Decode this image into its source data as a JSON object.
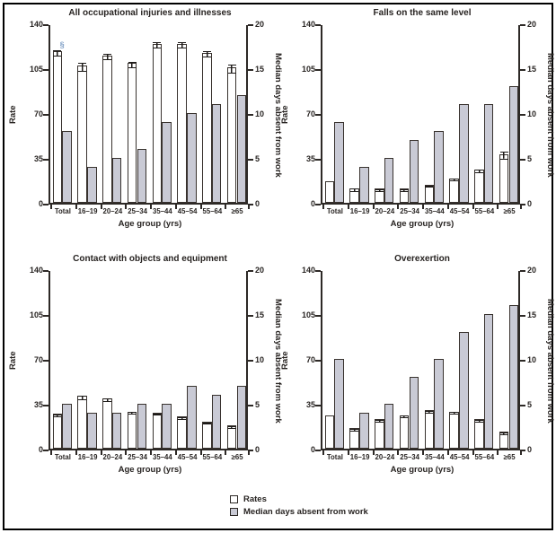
{
  "figure": {
    "legend": [
      {
        "label": "Rates",
        "fill": "#ffffff"
      },
      {
        "label": "Median days absent from work",
        "fill": "#c9cad5"
      }
    ],
    "colors": {
      "frame_border": "#000000",
      "axis": "#2d2926",
      "bar_outline": "#38322e",
      "rates_fill": "#ffffff",
      "days_fill": "#c9cad5",
      "text": "#272321",
      "footnote_marker": "#7f9fc6"
    },
    "footnote_marker": "§"
  },
  "chart_data": [
    {
      "type": "bar",
      "title": "All occupational injuries and illnesses",
      "categories": [
        "Total",
        "16–19",
        "20–24",
        "25–34",
        "35–44",
        "45–54",
        "55–64",
        "≥65"
      ],
      "xlabel": "Age group (yrs)",
      "left_axis": {
        "label": "Rate",
        "ticks": [
          0,
          35,
          70,
          105,
          140
        ],
        "range": [
          0,
          140
        ]
      },
      "right_axis": {
        "label": "Median days absent from work",
        "ticks": [
          0,
          5,
          10,
          15,
          20
        ],
        "range": [
          0,
          20
        ]
      },
      "series": [
        {
          "name": "Rates",
          "axis": "left",
          "values": [
            118,
            107,
            115,
            109,
            124,
            124,
            117,
            106
          ],
          "errors": [
            2.5,
            3.5,
            2.5,
            2.5,
            2.5,
            2.5,
            2.5,
            3.5
          ],
          "notes": [
            "§",
            "",
            "",
            "",
            "",
            "",
            "",
            ""
          ]
        },
        {
          "name": "Median days absent from work",
          "axis": "right",
          "values": [
            8,
            4,
            5,
            6,
            9,
            10,
            11,
            12
          ]
        }
      ]
    },
    {
      "type": "bar",
      "title": "Falls on the same level",
      "categories": [
        "Total",
        "16–19",
        "20–24",
        "25–34",
        "35–44",
        "45–54",
        "55–64",
        "≥65"
      ],
      "xlabel": "Age group (yrs)",
      "left_axis": {
        "label": "Rate",
        "ticks": [
          0,
          35,
          70,
          105,
          140
        ],
        "range": [
          0,
          140
        ]
      },
      "right_axis": {
        "label": "Median days absent from work",
        "ticks": [
          0,
          5,
          10,
          15,
          20
        ],
        "range": [
          0,
          20
        ]
      },
      "series": [
        {
          "name": "Rates",
          "axis": "left",
          "values": [
            17,
            11,
            11,
            11,
            14,
            19,
            26,
            38
          ],
          "errors": [
            0,
            1.5,
            1,
            1,
            1,
            1,
            1.5,
            3
          ],
          "notes": [
            "",
            "",
            "",
            "",
            "",
            "",
            "",
            ""
          ]
        },
        {
          "name": "Median days absent from work",
          "axis": "right",
          "values": [
            9,
            4,
            5,
            7,
            8,
            11,
            11,
            13
          ]
        }
      ]
    },
    {
      "type": "bar",
      "title": "Contact with objects and equipment",
      "categories": [
        "Total",
        "16–19",
        "20–24",
        "25–34",
        "35–44",
        "45–54",
        "55–64",
        "≥65"
      ],
      "xlabel": "Age group (yrs)",
      "left_axis": {
        "label": "Rate",
        "ticks": [
          0,
          35,
          70,
          105,
          140
        ],
        "range": [
          0,
          140
        ]
      },
      "right_axis": {
        "label": "Median days absent from work",
        "ticks": [
          0,
          5,
          10,
          15,
          20
        ],
        "range": [
          0,
          20
        ]
      },
      "series": [
        {
          "name": "Rates",
          "axis": "left",
          "values": [
            27,
            41,
            39,
            29,
            28,
            25,
            21,
            18
          ],
          "errors": [
            1,
            2,
            1.5,
            1,
            1,
            1,
            1,
            1
          ],
          "notes": [
            "",
            "",
            "",
            "",
            "",
            "",
            "",
            ""
          ]
        },
        {
          "name": "Median days absent from work",
          "axis": "right",
          "values": [
            5,
            4,
            4,
            5,
            5,
            7,
            6,
            7
          ]
        }
      ]
    },
    {
      "type": "bar",
      "title": "Overexertion",
      "categories": [
        "Total",
        "16–19",
        "20–24",
        "25–34",
        "35–44",
        "45–54",
        "55–64",
        "≥65"
      ],
      "xlabel": "Age group (yrs)",
      "left_axis": {
        "label": "Rate",
        "ticks": [
          0,
          35,
          70,
          105,
          140
        ],
        "range": [
          0,
          140
        ]
      },
      "right_axis": {
        "label": "Median days absent from work",
        "ticks": [
          0,
          5,
          10,
          15,
          20
        ],
        "range": [
          0,
          20
        ]
      },
      "series": [
        {
          "name": "Rates",
          "axis": "left",
          "values": [
            26,
            16,
            23,
            26,
            30,
            29,
            23,
            13
          ],
          "errors": [
            0,
            1,
            1,
            1,
            1,
            1,
            1,
            1
          ],
          "notes": [
            "",
            "",
            "",
            "",
            "",
            "",
            "",
            ""
          ]
        },
        {
          "name": "Median days absent from work",
          "axis": "right",
          "values": [
            10,
            4,
            5,
            8,
            10,
            13,
            15,
            16
          ]
        }
      ]
    }
  ]
}
